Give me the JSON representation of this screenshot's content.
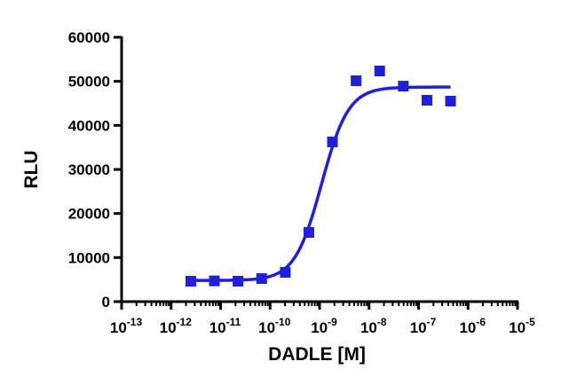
{
  "chart_data": {
    "type": "scatter",
    "x_label": "DADLE [M]",
    "y_label": "RLU",
    "x_log": true,
    "xlim": [
      1e-13,
      1e-05
    ],
    "ylim": [
      0,
      60000
    ],
    "xticks": [
      {
        "value": 1e-13,
        "label": "10",
        "exponent": "-13"
      },
      {
        "value": 1e-12,
        "label": "10",
        "exponent": "-12"
      },
      {
        "value": 1e-11,
        "label": "10",
        "exponent": "-11"
      },
      {
        "value": 1e-10,
        "label": "10",
        "exponent": "-10"
      },
      {
        "value": 1e-09,
        "label": "10",
        "exponent": "-9"
      },
      {
        "value": 1e-08,
        "label": "10",
        "exponent": "-8"
      },
      {
        "value": 1e-07,
        "label": "10",
        "exponent": "-7"
      },
      {
        "value": 1e-06,
        "label": "10",
        "exponent": "-6"
      },
      {
        "value": 1e-05,
        "label": "10",
        "exponent": "-5"
      }
    ],
    "yticks": [
      0,
      10000,
      20000,
      30000,
      40000,
      50000,
      60000
    ],
    "minor_ticks": true,
    "color": "#1f1fe0",
    "x": [
      2.5e-12,
      7.5e-12,
      2.25e-11,
      6.75e-11,
      2.03e-10,
      6.08e-10,
      1.82e-09,
      5.47e-09,
      1.64e-08,
      4.92e-08,
      1.48e-07,
      4.43e-07
    ],
    "values": [
      4630,
      4700,
      4630,
      5230,
      6640,
      15700,
      36240,
      50130,
      52350,
      48900,
      45700,
      45500
    ],
    "fit": {
      "bottom": 4800,
      "top": 48700,
      "ec50": 1.1e-09,
      "hill": 1.6
    }
  }
}
